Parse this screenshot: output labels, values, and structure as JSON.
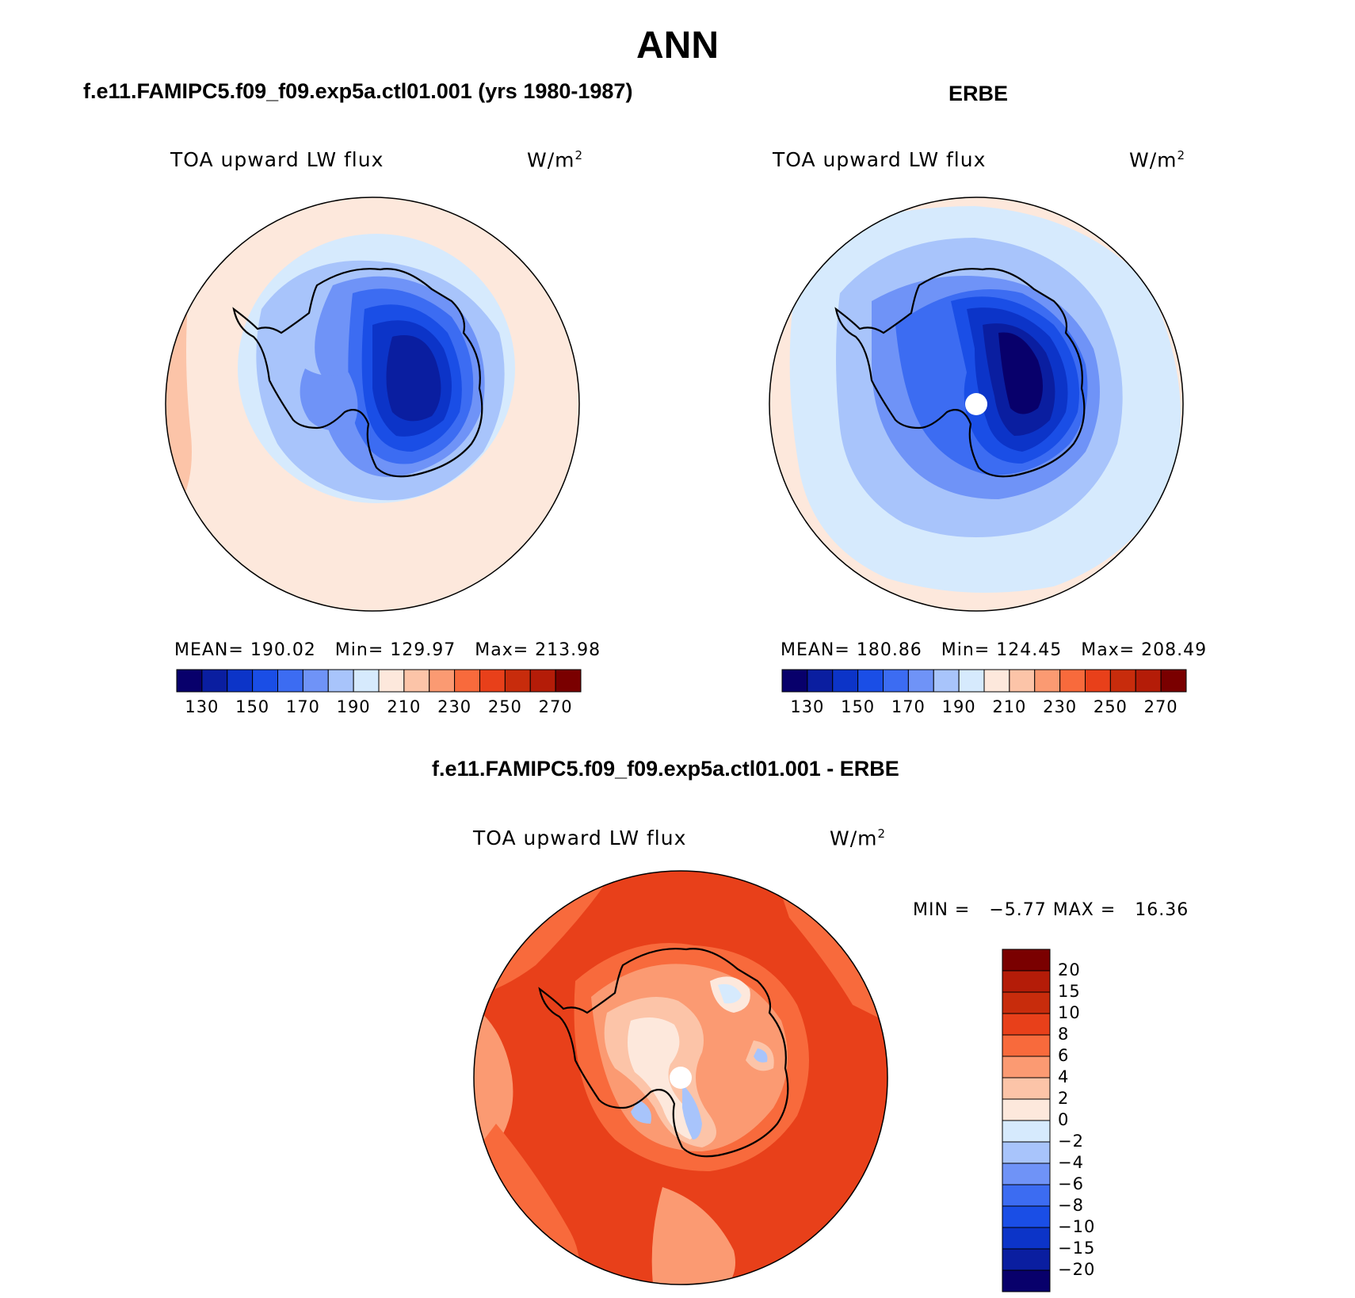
{
  "main_title": "ANN",
  "colors": {
    "diverging_scale": [
      "#08006b",
      "#0a1ea0",
      "#0c34c8",
      "#1a4ee6",
      "#3c6cf2",
      "#6f93f7",
      "#a8c4fb",
      "#d6eafd",
      "#fde8dc",
      "#fcc4a8",
      "#fb9a72",
      "#f86a3c",
      "#e8401a",
      "#c82c0c",
      "#b41c08",
      "#7a0000"
    ],
    "coast": "#000000"
  },
  "panels": {
    "model": {
      "case_title": "f.e11.FAMIPC5.f09_f09.exp5a.ctl01.001 (yrs 1980-1987)",
      "variable_label": "TOA upward LW flux",
      "units_base": "W/m",
      "units_exp": "2",
      "stats": {
        "mean_label": "MEAN=",
        "mean": "190.02",
        "min_label": "Min=",
        "min": "129.97",
        "max_label": "Max=",
        "max": "213.98"
      },
      "colorbar_ticks": [
        "130",
        "150",
        "170",
        "190",
        "210",
        "230",
        "250",
        "270"
      ]
    },
    "obs": {
      "case_title": "ERBE",
      "variable_label": "TOA upward LW flux",
      "units_base": "W/m",
      "units_exp": "2",
      "stats": {
        "mean_label": "MEAN=",
        "mean": "180.86",
        "min_label": "Min=",
        "min": "124.45",
        "max_label": "Max=",
        "max": "208.49"
      },
      "colorbar_ticks": [
        "130",
        "150",
        "170",
        "190",
        "210",
        "230",
        "250",
        "270"
      ]
    },
    "diff": {
      "case_title": "f.e11.FAMIPC5.f09_f09.exp5a.ctl01.001 - ERBE",
      "variable_label": "TOA upward LW flux",
      "units_base": "W/m",
      "units_exp": "2",
      "range": {
        "min_label": "MIN =",
        "min": "−5.77",
        "max_label": "MAX =",
        "max": "16.36"
      },
      "colorbar_ticks": [
        "20",
        "15",
        "10",
        "8",
        "6",
        "4",
        "2",
        "0",
        "−2",
        "−4",
        "−6",
        "−8",
        "−10",
        "−15",
        "−20"
      ]
    }
  },
  "chart_data": [
    {
      "type": "heatmap",
      "title": "TOA upward LW flux",
      "subtitle": "f.e11.FAMIPC5.f09_f09.exp5a.ctl01.001 (yrs 1980-1987)",
      "projection": "south-polar stereographic",
      "units": "W/m2",
      "levels": [
        130,
        140,
        150,
        160,
        170,
        180,
        190,
        200,
        210,
        220,
        230,
        240,
        250,
        260,
        270
      ],
      "mean": 190.02,
      "min": 129.97,
      "max": 213.98
    },
    {
      "type": "heatmap",
      "title": "TOA upward LW flux",
      "subtitle": "ERBE",
      "projection": "south-polar stereographic",
      "units": "W/m2",
      "levels": [
        130,
        140,
        150,
        160,
        170,
        180,
        190,
        200,
        210,
        220,
        230,
        240,
        250,
        260,
        270
      ],
      "mean": 180.86,
      "min": 124.45,
      "max": 208.49
    },
    {
      "type": "heatmap",
      "title": "TOA upward LW flux",
      "subtitle": "f.e11.FAMIPC5.f09_f09.exp5a.ctl01.001 - ERBE",
      "projection": "south-polar stereographic",
      "units": "W/m2",
      "levels": [
        -20,
        -15,
        -10,
        -8,
        -6,
        -4,
        -2,
        0,
        2,
        4,
        6,
        8,
        10,
        15,
        20
      ],
      "min": -5.77,
      "max": 16.36
    }
  ]
}
